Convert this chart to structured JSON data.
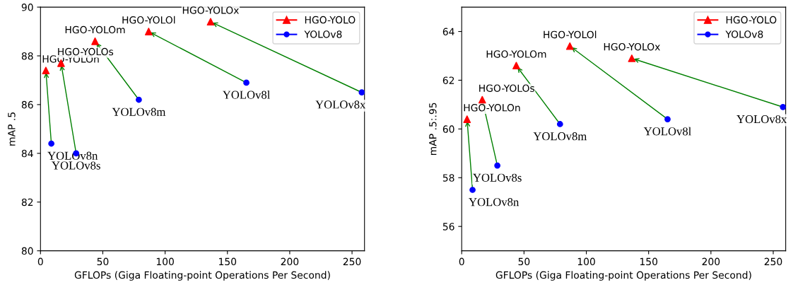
{
  "chart_data": [
    {
      "type": "scatter",
      "xlabel": "GFLOPs (Giga Floating-point Operations Per Second)",
      "ylabel": "mAP .5",
      "xlim": [
        0,
        260
      ],
      "xticks": [
        0,
        50,
        100,
        150,
        200,
        250
      ],
      "ylim": [
        80,
        90
      ],
      "yticks": [
        80,
        82,
        84,
        86,
        88,
        90
      ],
      "legend": "top right",
      "grid": false,
      "series": [
        {
          "name": "HGO-YOLO",
          "color": "#ff0000",
          "marker": "triangle",
          "x": [
            4.3,
            16.5,
            43.8,
            86.8,
            136.5
          ],
          "values": [
            87.4,
            87.7,
            88.6,
            89.0,
            89.4
          ]
        },
        {
          "name": "YOLOv8",
          "color": "#0000ff",
          "marker": "circle",
          "x": [
            8.7,
            28.6,
            78.9,
            165.2,
            257.8
          ],
          "values": [
            84.4,
            84.0,
            86.2,
            86.9,
            86.5
          ]
        }
      ],
      "annotations": [
        {
          "text": "HGO-YOLOn",
          "x": 4.3,
          "y": 87.4
        },
        {
          "text": "HGO-YOLOs",
          "x": 16.5,
          "y": 87.7
        },
        {
          "text": "HGO-YOLOm",
          "x": 43.8,
          "y": 88.6
        },
        {
          "text": "HGO-YOLOl",
          "x": 86.8,
          "y": 89.0
        },
        {
          "text": "HGO-YOLOx",
          "x": 136.5,
          "y": 89.4
        },
        {
          "text": "YOLOv8n",
          "x": 8.7,
          "y": 84.4
        },
        {
          "text": "YOLOv8s",
          "x": 28.6,
          "y": 84.0
        },
        {
          "text": "YOLOv8m",
          "x": 78.9,
          "y": 86.2
        },
        {
          "text": "YOLOv8l",
          "x": 165.2,
          "y": 86.9
        },
        {
          "text": "YOLOv8x",
          "x": 257.8,
          "y": 86.5
        }
      ]
    },
    {
      "type": "scatter",
      "xlabel": "GFLOPs (Giga Floating-point Operations Per Second)",
      "ylabel": "mAP .5:.95",
      "xlim": [
        0,
        260
      ],
      "xticks": [
        0,
        50,
        100,
        150,
        200,
        250
      ],
      "ylim": [
        55,
        65
      ],
      "yticks": [
        56,
        58,
        60,
        62,
        64
      ],
      "legend": "top right",
      "grid": false,
      "series": [
        {
          "name": "HGO-YOLO",
          "color": "#ff0000",
          "marker": "triangle",
          "x": [
            4.3,
            16.5,
            43.8,
            86.8,
            136.5
          ],
          "values": [
            60.4,
            61.2,
            62.6,
            63.4,
            62.9
          ]
        },
        {
          "name": "YOLOv8",
          "color": "#0000ff",
          "marker": "circle",
          "x": [
            8.7,
            28.6,
            78.9,
            165.2,
            257.8
          ],
          "values": [
            57.5,
            58.5,
            60.2,
            60.4,
            60.9
          ]
        }
      ],
      "annotations": [
        {
          "text": "HGO-YOLOn",
          "x": 4.3,
          "y": 60.4
        },
        {
          "text": "HGO-YOLOs",
          "x": 16.5,
          "y": 61.2
        },
        {
          "text": "HGO-YOLOm",
          "x": 43.8,
          "y": 62.6
        },
        {
          "text": "HGO-YOLOl",
          "x": 86.8,
          "y": 63.4
        },
        {
          "text": "HGO-YOLOx",
          "x": 136.5,
          "y": 62.9
        },
        {
          "text": "YOLOv8n",
          "x": 8.7,
          "y": 57.5
        },
        {
          "text": "YOLOv8s",
          "x": 28.6,
          "y": 58.5
        },
        {
          "text": "YOLOv8m",
          "x": 78.9,
          "y": 60.2
        },
        {
          "text": "YOLOv8l",
          "x": 165.2,
          "y": 60.4
        },
        {
          "text": "YOLOv8x",
          "x": 257.8,
          "y": 60.9
        }
      ]
    }
  ]
}
